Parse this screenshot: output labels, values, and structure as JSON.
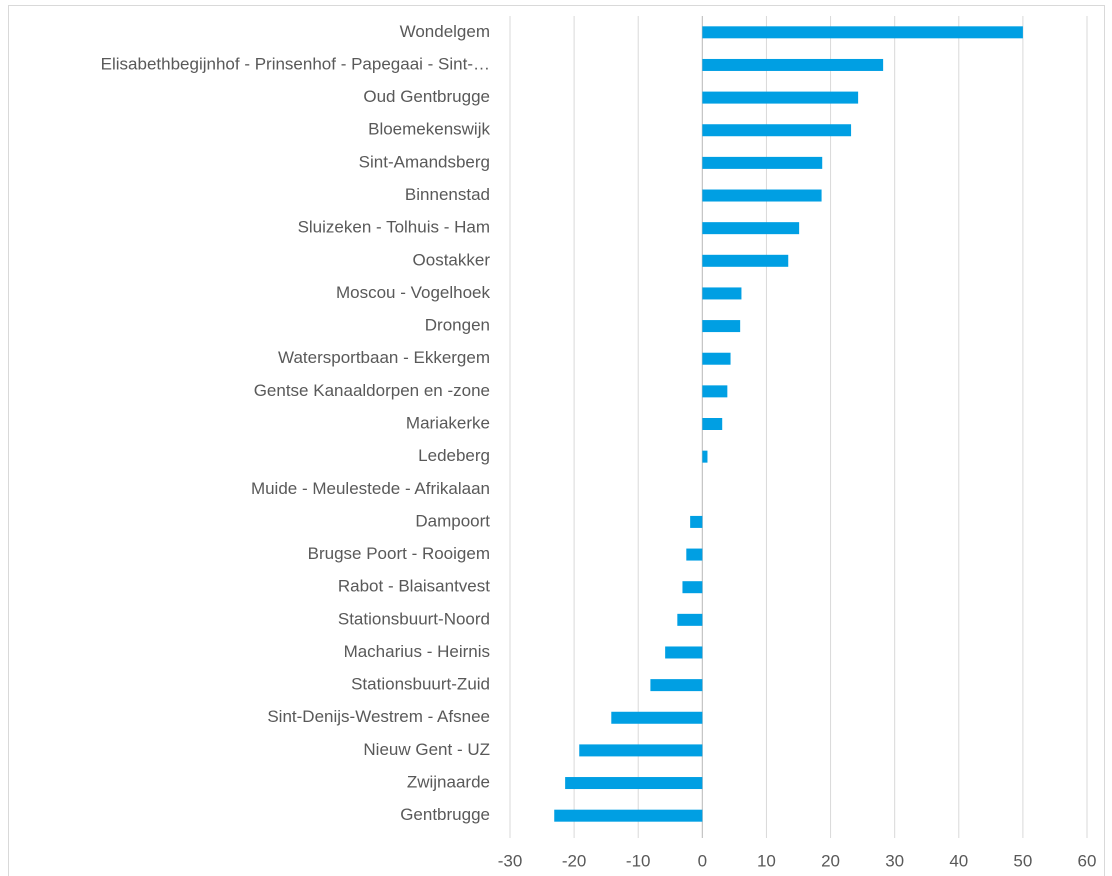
{
  "chart_data": {
    "type": "hbar",
    "categories": [
      "Wondelgem",
      "Elisabethbegijnhof - Prinsenhof - Papegaai - Sint-…",
      "Oud Gentbrugge",
      "Bloemekenswijk",
      "Sint-Amandsberg",
      "Binnenstad",
      "Sluizeken - Tolhuis - Ham",
      "Oostakker",
      "Moscou - Vogelhoek",
      "Drongen",
      "Watersportbaan - Ekkergem",
      "Gentse Kanaaldorpen en -zone",
      "Mariakerke",
      "Ledeberg",
      "Muide - Meulestede - Afrikalaan",
      "Dampoort",
      "Brugse Poort - Rooigem",
      "Rabot - Blaisantvest",
      "Stationsbuurt-Noord",
      "Macharius - Heirnis",
      "Stationsbuurt-Zuid",
      "Sint-Denijs-Westrem - Afsnee",
      "Nieuw Gent - UZ",
      "Zwijnaarde",
      "Gentbrugge"
    ],
    "values": [
      50,
      28.2,
      24.3,
      23.2,
      18.7,
      18.6,
      15.1,
      13.4,
      6.1,
      5.9,
      4.4,
      3.9,
      3.1,
      0.8,
      0,
      -1.9,
      -2.5,
      -3.1,
      -3.9,
      -5.8,
      -8.1,
      -14.2,
      -19.2,
      -21.4,
      -23.1
    ],
    "color": "#009fe3",
    "xlim": [
      -30,
      60
    ],
    "xticks": [
      -30,
      -20,
      -10,
      0,
      10,
      20,
      30,
      40,
      50,
      60
    ],
    "grid": true
  }
}
